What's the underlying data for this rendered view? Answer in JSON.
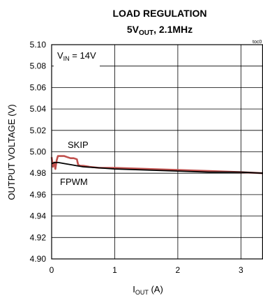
{
  "chart_data": {
    "type": "line",
    "title_line1": "LOAD REGULATION",
    "title_line2": {
      "main": "5V",
      "sub": "OUT",
      "rest": ", 2.1MHz"
    },
    "toc_label": "toc0",
    "ylabel": "OUTPUT VOLTAGE (V)",
    "xlabel": {
      "main": "I",
      "sub": "OUT",
      "rest": " (A)"
    },
    "xlim": [
      0,
      3.35
    ],
    "ylim": [
      4.9,
      5.1
    ],
    "x_ticks": [
      "0",
      "1",
      "2",
      "3"
    ],
    "y_ticks": [
      "4.90",
      "4.92",
      "4.94",
      "4.96",
      "4.98",
      "5.00",
      "5.02",
      "5.04",
      "5.06",
      "5.08",
      "5.10"
    ],
    "grid": true,
    "annotations": {
      "vin": {
        "main": "V",
        "sub": "IN",
        "rest": " = 14V"
      },
      "skip": "SKIP",
      "fpwm": "FPWM"
    },
    "series": [
      {
        "color": "#c0504d",
        "x": [
          0,
          0.02,
          0.04,
          0.06,
          0.08,
          0.1,
          0.15,
          0.2,
          0.25,
          0.3,
          0.35,
          0.4,
          0.42,
          0.45,
          0.5,
          0.6,
          0.75,
          1.0,
          1.5,
          2.0,
          2.5,
          3.0,
          3.35
        ],
        "y": [
          4.995,
          4.986,
          4.99,
          4.984,
          4.992,
          4.996,
          4.996,
          4.996,
          4.995,
          4.994,
          4.994,
          4.993,
          4.988,
          4.987,
          4.987,
          4.986,
          4.985,
          4.985,
          4.984,
          4.983,
          4.982,
          4.981,
          4.98
        ]
      },
      {
        "color": "#000000",
        "x": [
          0,
          0.05,
          0.1,
          0.2,
          0.3,
          0.4,
          0.5,
          0.75,
          1.0,
          1.5,
          2.0,
          2.5,
          3.0,
          3.35
        ],
        "y": [
          4.989,
          4.99,
          4.99,
          4.989,
          4.988,
          4.987,
          4.986,
          4.985,
          4.984,
          4.983,
          4.982,
          4.981,
          4.981,
          4.98
        ]
      }
    ]
  }
}
